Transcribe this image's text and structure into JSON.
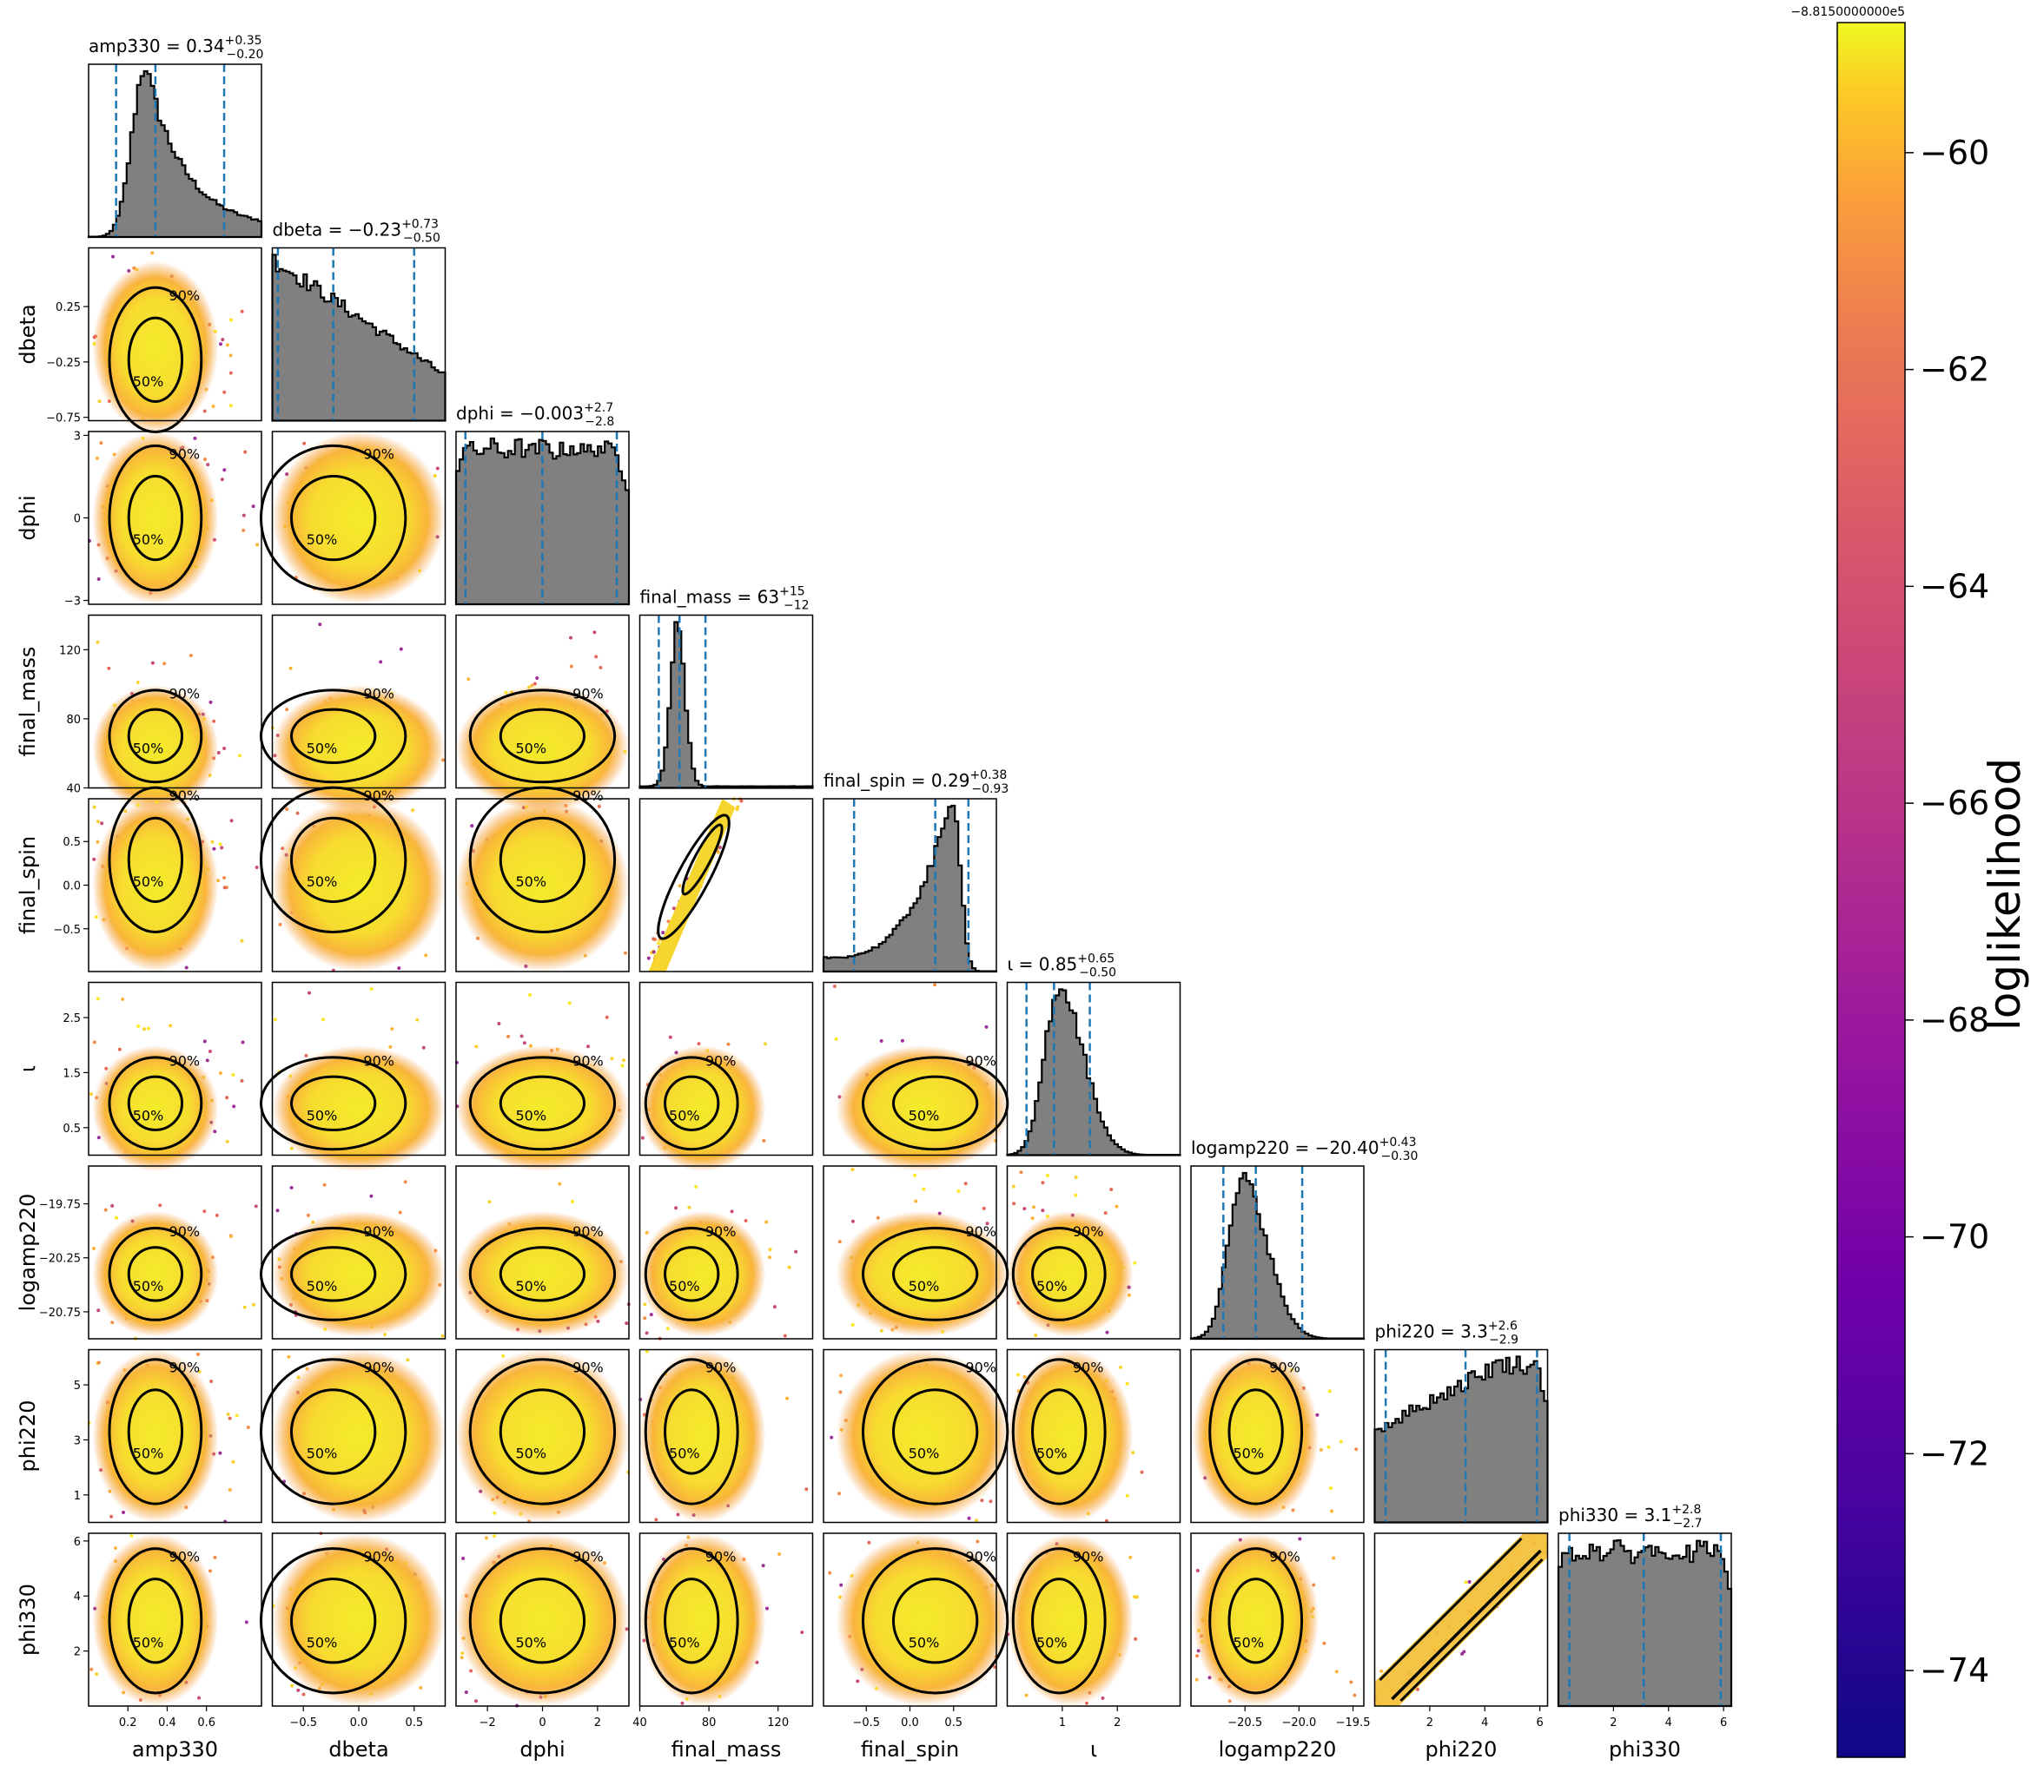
{
  "chart_data": {
    "type": "corner",
    "title": "",
    "parameters": [
      {
        "key": "amp330",
        "axis_label": "amp330",
        "title": "amp330 = 0.34",
        "median": 0.34,
        "plus": "+0.35",
        "minus": "−0.20",
        "lo": 0.14,
        "hi": 0.69,
        "range": [
          0.0,
          0.88
        ],
        "ticks": [
          0.2,
          0.4,
          0.6
        ],
        "tick_labels": [
          "0.2",
          "0.4",
          "0.6"
        ],
        "shape": "skew-right"
      },
      {
        "key": "dbeta",
        "axis_label": "dbeta",
        "title": "dbeta = −0.23",
        "median": -0.23,
        "plus": "+0.73",
        "minus": "−0.50",
        "lo": -0.73,
        "hi": 0.5,
        "range": [
          -0.78,
          0.78
        ],
        "ticks": [
          -0.75,
          -0.25,
          0.25
        ],
        "tick_labels": [
          "−0.75",
          "−0.25",
          "0.25"
        ],
        "xticks": [
          -0.5,
          0.0,
          0.5
        ],
        "xtick_labels": [
          "−0.5",
          "0.0",
          "0.5"
        ],
        "shape": "decreasing"
      },
      {
        "key": "dphi",
        "axis_label": "dphi",
        "title": "dphi = −0.003",
        "median": -0.003,
        "plus": "+2.7",
        "minus": "−2.8",
        "lo": -2.8,
        "hi": 2.7,
        "range": [
          -3.14,
          3.14
        ],
        "ticks": [
          -3,
          0,
          3
        ],
        "tick_labels": [
          "−3",
          "0",
          "3"
        ],
        "xticks": [
          -2,
          0,
          2
        ],
        "xtick_labels": [
          "−2",
          "0",
          "2"
        ],
        "shape": "flat"
      },
      {
        "key": "final_mass",
        "axis_label": "final_mass",
        "title": "final_mass = 63",
        "median": 63,
        "plus": "+15",
        "minus": "−12",
        "lo": 51,
        "hi": 78,
        "range": [
          40,
          140
        ],
        "ticks": [
          40,
          80,
          120
        ],
        "tick_labels": [
          "40",
          "80",
          "120"
        ],
        "shape": "peak-narrow"
      },
      {
        "key": "final_spin",
        "axis_label": "final_spin",
        "title": "final_spin = 0.29",
        "median": 0.29,
        "plus": "+0.38",
        "minus": "−0.93",
        "lo": -0.64,
        "hi": 0.67,
        "range": [
          -0.99,
          0.99
        ],
        "ticks": [
          -0.5,
          0.0,
          0.5
        ],
        "tick_labels": [
          "−0.5",
          "0.0",
          "0.5"
        ],
        "shape": "skew-left"
      },
      {
        "key": "iota",
        "axis_label": "ι",
        "title": "ι = 0.85",
        "median": 0.85,
        "plus": "+0.65",
        "minus": "−0.50",
        "lo": 0.35,
        "hi": 1.5,
        "range": [
          0.0,
          3.14
        ],
        "ticks": [
          0.5,
          1.5,
          2.5
        ],
        "tick_labels": [
          "0.5",
          "1.5",
          "2.5"
        ],
        "xticks": [
          1,
          2
        ],
        "xtick_labels": [
          "1",
          "2"
        ],
        "shape": "peak-skew"
      },
      {
        "key": "logamp220",
        "axis_label": "logamp220",
        "title": "logamp220 = −20.40",
        "median": -20.4,
        "plus": "+0.43",
        "minus": "−0.30",
        "lo": -20.7,
        "hi": -19.97,
        "range": [
          -21.0,
          -19.4
        ],
        "ticks": [
          -20.75,
          -20.25,
          -19.75
        ],
        "tick_labels": [
          "−20.75",
          "−20.25",
          "−19.75"
        ],
        "xticks": [
          -20.5,
          -20.0,
          -19.5
        ],
        "xtick_labels": [
          "−20.5",
          "−20.0",
          "−19.5"
        ],
        "shape": "peak-skew"
      },
      {
        "key": "phi220",
        "axis_label": "phi220",
        "title": "phi220 = 3.3",
        "median": 3.3,
        "plus": "+2.6",
        "minus": "−2.9",
        "lo": 0.4,
        "hi": 5.9,
        "range": [
          0.0,
          6.28
        ],
        "ticks": [
          1,
          3,
          5
        ],
        "tick_labels": [
          "1",
          "3",
          "5"
        ],
        "xticks": [
          2,
          4,
          6
        ],
        "xtick_labels": [
          "2",
          "4",
          "6"
        ],
        "shape": "flat-rising"
      },
      {
        "key": "phi330",
        "axis_label": "phi330",
        "title": "phi330 = 3.1",
        "median": 3.1,
        "plus": "+2.8",
        "minus": "−2.7",
        "lo": 0.4,
        "hi": 5.9,
        "range": [
          0.0,
          6.28
        ],
        "ticks": [
          2,
          4,
          6
        ],
        "tick_labels": [
          "2",
          "4",
          "6"
        ],
        "shape": "flat"
      }
    ],
    "contour_levels": [
      "50%",
      "90%"
    ],
    "colorbar": {
      "label": "loglikelihood",
      "offset": "−8.8150000000e5",
      "range": [
        -74.8,
        -58.8
      ],
      "ticks": [
        -60,
        -62,
        -64,
        -66,
        -68,
        -70,
        -72,
        -74
      ],
      "tick_labels": [
        "−60",
        "−62",
        "−64",
        "−66",
        "−68",
        "−70",
        "−72",
        "−74"
      ],
      "colormap": "plasma"
    },
    "colors": {
      "histogram": "#808080",
      "quantile_line": "#1f77b4",
      "contour": "#000000"
    }
  }
}
